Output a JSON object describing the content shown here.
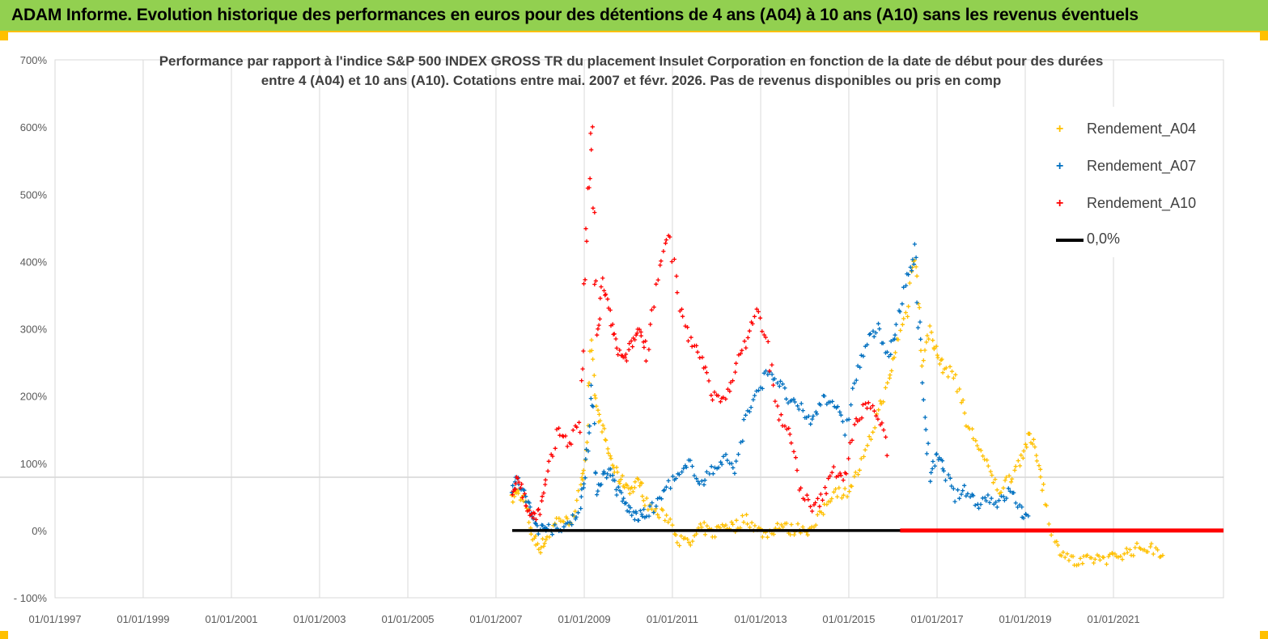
{
  "banner": {
    "text": "ADAM Informe. Evolution historique des performances en euros pour des détentions de 4 ans (A04) à 10 ans (A10) sans les revenus éventuels"
  },
  "colors": {
    "banner_bg": "#92d050",
    "banner_border": "#ffc000",
    "A04": "#ffc000",
    "A07": "#0070c0",
    "A10": "#ff0000",
    "zero_line": "#000000"
  },
  "chart_data": {
    "type": "scatter",
    "title_lines": [
      "Performance par rapport à l'indice S&P 500 INDEX GROSS TR  du placement Insulet Corporation en fonction de la date de début pour des durées",
      "entre 4 (A04) et 10 ans (A10). Cotations entre mai. 2007 et févr. 2026. Pas de revenus disponibles ou pris en comp"
    ],
    "x_ticks": [
      "01/01/1997",
      "01/01/1999",
      "01/01/2001",
      "01/01/2003",
      "01/01/2005",
      "01/01/2007",
      "01/01/2009",
      "01/01/2011",
      "01/01/2013",
      "01/01/2015",
      "01/01/2017",
      "01/01/2019",
      "01/01/2021"
    ],
    "x_range": [
      "1997-01-01",
      "2023-07-01"
    ],
    "y_ticks": [
      "700%",
      "600%",
      "500%",
      "400%",
      "300%",
      "200%",
      "100%",
      "0%",
      "- 100%"
    ],
    "y_range": [
      -100,
      700
    ],
    "grid": "vertical",
    "legend_position": "top-right",
    "legend": [
      "Rendement_A04",
      "Rendement_A07",
      "Rendement_A10",
      "0,0%"
    ],
    "series": [
      {
        "name": "Rendement_A04",
        "points": [
          [
            "2007-05-15",
            45
          ],
          [
            "2007-07-01",
            60
          ],
          [
            "2007-09-01",
            40
          ],
          [
            "2007-11-01",
            -10
          ],
          [
            "2008-01-01",
            -25
          ],
          [
            "2008-03-01",
            -10
          ],
          [
            "2008-06-01",
            20
          ],
          [
            "2008-09-01",
            10
          ],
          [
            "2008-12-01",
            60
          ],
          [
            "2009-01-15",
            120
          ],
          [
            "2009-03-01",
            270
          ],
          [
            "2009-04-15",
            180
          ],
          [
            "2009-06-01",
            150
          ],
          [
            "2009-08-01",
            110
          ],
          [
            "2009-10-01",
            80
          ],
          [
            "2009-12-01",
            70
          ],
          [
            "2010-02-01",
            60
          ],
          [
            "2010-04-01",
            75
          ],
          [
            "2010-06-01",
            40
          ],
          [
            "2010-09-01",
            25
          ],
          [
            "2010-12-01",
            20
          ],
          [
            "2011-03-01",
            -15
          ],
          [
            "2011-06-01",
            -20
          ],
          [
            "2011-09-01",
            5
          ],
          [
            "2011-12-01",
            -5
          ],
          [
            "2012-03-01",
            10
          ],
          [
            "2012-06-01",
            5
          ],
          [
            "2012-09-01",
            20
          ],
          [
            "2012-12-01",
            0
          ],
          [
            "2013-03-01",
            -5
          ],
          [
            "2013-06-01",
            10
          ],
          [
            "2013-09-01",
            0
          ],
          [
            "2013-12-01",
            5
          ],
          [
            "2014-03-01",
            0
          ],
          [
            "2014-06-01",
            30
          ],
          [
            "2014-09-01",
            60
          ],
          [
            "2014-12-01",
            55
          ],
          [
            "2015-03-01",
            80
          ],
          [
            "2015-06-01",
            120
          ],
          [
            "2015-09-01",
            180
          ],
          [
            "2015-12-01",
            220
          ],
          [
            "2016-02-01",
            280
          ],
          [
            "2016-05-01",
            330
          ],
          [
            "2016-07-01",
            430
          ],
          [
            "2016-09-01",
            250
          ],
          [
            "2016-11-01",
            300
          ],
          [
            "2017-01-01",
            260
          ],
          [
            "2017-03-01",
            240
          ],
          [
            "2017-06-01",
            230
          ],
          [
            "2017-09-01",
            160
          ],
          [
            "2017-12-01",
            130
          ],
          [
            "2018-03-01",
            90
          ],
          [
            "2018-06-01",
            60
          ],
          [
            "2018-09-01",
            80
          ],
          [
            "2018-12-01",
            110
          ],
          [
            "2019-02-01",
            140
          ],
          [
            "2019-04-01",
            120
          ],
          [
            "2019-06-01",
            60
          ],
          [
            "2019-09-01",
            -20
          ],
          [
            "2019-12-01",
            -35
          ],
          [
            "2020-03-01",
            -50
          ],
          [
            "2020-06-01",
            -45
          ],
          [
            "2020-09-01",
            -40
          ],
          [
            "2020-12-01",
            -42
          ],
          [
            "2021-03-01",
            -35
          ],
          [
            "2021-06-01",
            -30
          ],
          [
            "2021-09-01",
            -25
          ],
          [
            "2021-12-01",
            -28
          ],
          [
            "2022-03-01",
            -35
          ]
        ]
      },
      {
        "name": "Rendement_A07",
        "points": [
          [
            "2007-05-15",
            65
          ],
          [
            "2007-07-01",
            75
          ],
          [
            "2007-09-01",
            50
          ],
          [
            "2007-11-01",
            20
          ],
          [
            "2008-01-01",
            0
          ],
          [
            "2008-03-01",
            10
          ],
          [
            "2008-06-01",
            -5
          ],
          [
            "2008-09-01",
            15
          ],
          [
            "2008-12-01",
            30
          ],
          [
            "2009-01-15",
            100
          ],
          [
            "2009-03-01",
            210
          ],
          [
            "2009-04-15",
            60
          ],
          [
            "2009-06-01",
            80
          ],
          [
            "2009-08-01",
            90
          ],
          [
            "2009-10-01",
            60
          ],
          [
            "2009-12-01",
            40
          ],
          [
            "2010-02-01",
            25
          ],
          [
            "2010-04-01",
            20
          ],
          [
            "2010-06-01",
            25
          ],
          [
            "2010-09-01",
            40
          ],
          [
            "2010-12-01",
            70
          ],
          [
            "2011-03-01",
            80
          ],
          [
            "2011-06-01",
            100
          ],
          [
            "2011-09-01",
            70
          ],
          [
            "2011-12-01",
            90
          ],
          [
            "2012-03-01",
            110
          ],
          [
            "2012-06-01",
            90
          ],
          [
            "2012-09-01",
            170
          ],
          [
            "2012-12-01",
            200
          ],
          [
            "2013-03-01",
            240
          ],
          [
            "2013-06-01",
            220
          ],
          [
            "2013-09-01",
            190
          ],
          [
            "2013-12-01",
            180
          ],
          [
            "2014-03-01",
            160
          ],
          [
            "2014-06-01",
            200
          ],
          [
            "2014-09-01",
            190
          ],
          [
            "2014-12-01",
            150
          ],
          [
            "2015-03-01",
            230
          ],
          [
            "2015-06-01",
            280
          ],
          [
            "2015-09-01",
            300
          ],
          [
            "2015-12-01",
            260
          ],
          [
            "2016-02-01",
            300
          ],
          [
            "2016-05-01",
            380
          ],
          [
            "2016-07-01",
            410
          ],
          [
            "2016-09-01",
            230
          ],
          [
            "2016-11-01",
            80
          ],
          [
            "2017-01-01",
            110
          ],
          [
            "2017-03-01",
            90
          ],
          [
            "2017-06-01",
            50
          ],
          [
            "2017-09-01",
            60
          ],
          [
            "2017-12-01",
            40
          ],
          [
            "2018-03-01",
            50
          ],
          [
            "2018-06-01",
            40
          ],
          [
            "2018-09-01",
            60
          ],
          [
            "2018-12-01",
            30
          ],
          [
            "2019-02-01",
            10
          ]
        ]
      },
      {
        "name": "Rendement_A10",
        "points": [
          [
            "2007-05-15",
            50
          ],
          [
            "2007-07-01",
            85
          ],
          [
            "2007-09-01",
            40
          ],
          [
            "2007-11-01",
            20
          ],
          [
            "2008-01-01",
            30
          ],
          [
            "2008-03-01",
            80
          ],
          [
            "2008-06-01",
            150
          ],
          [
            "2008-09-01",
            130
          ],
          [
            "2008-12-01",
            170
          ],
          [
            "2009-01-15",
            420
          ],
          [
            "2009-03-01",
            600
          ],
          [
            "2009-04-15",
            280
          ],
          [
            "2009-06-01",
            370
          ],
          [
            "2009-08-01",
            320
          ],
          [
            "2009-10-01",
            270
          ],
          [
            "2009-12-01",
            250
          ],
          [
            "2010-02-01",
            280
          ],
          [
            "2010-04-01",
            300
          ],
          [
            "2010-06-01",
            270
          ],
          [
            "2010-09-01",
            380
          ],
          [
            "2010-12-01",
            440
          ],
          [
            "2011-03-01",
            330
          ],
          [
            "2011-06-01",
            280
          ],
          [
            "2011-09-01",
            260
          ],
          [
            "2011-12-01",
            200
          ],
          [
            "2012-03-01",
            190
          ],
          [
            "2012-06-01",
            240
          ],
          [
            "2012-09-01",
            280
          ],
          [
            "2012-12-01",
            330
          ],
          [
            "2013-03-01",
            270
          ],
          [
            "2013-06-01",
            170
          ],
          [
            "2013-09-01",
            140
          ],
          [
            "2013-12-01",
            60
          ],
          [
            "2014-03-01",
            30
          ],
          [
            "2014-06-01",
            50
          ],
          [
            "2014-09-01",
            90
          ],
          [
            "2014-12-01",
            80
          ],
          [
            "2015-03-01",
            160
          ],
          [
            "2015-06-01",
            190
          ],
          [
            "2015-09-01",
            170
          ],
          [
            "2015-12-01",
            110
          ]
        ]
      },
      {
        "name": "0,0%",
        "points": [
          [
            "2007-05-15",
            0
          ],
          [
            "2023-07-01",
            0
          ]
        ]
      }
    ]
  }
}
